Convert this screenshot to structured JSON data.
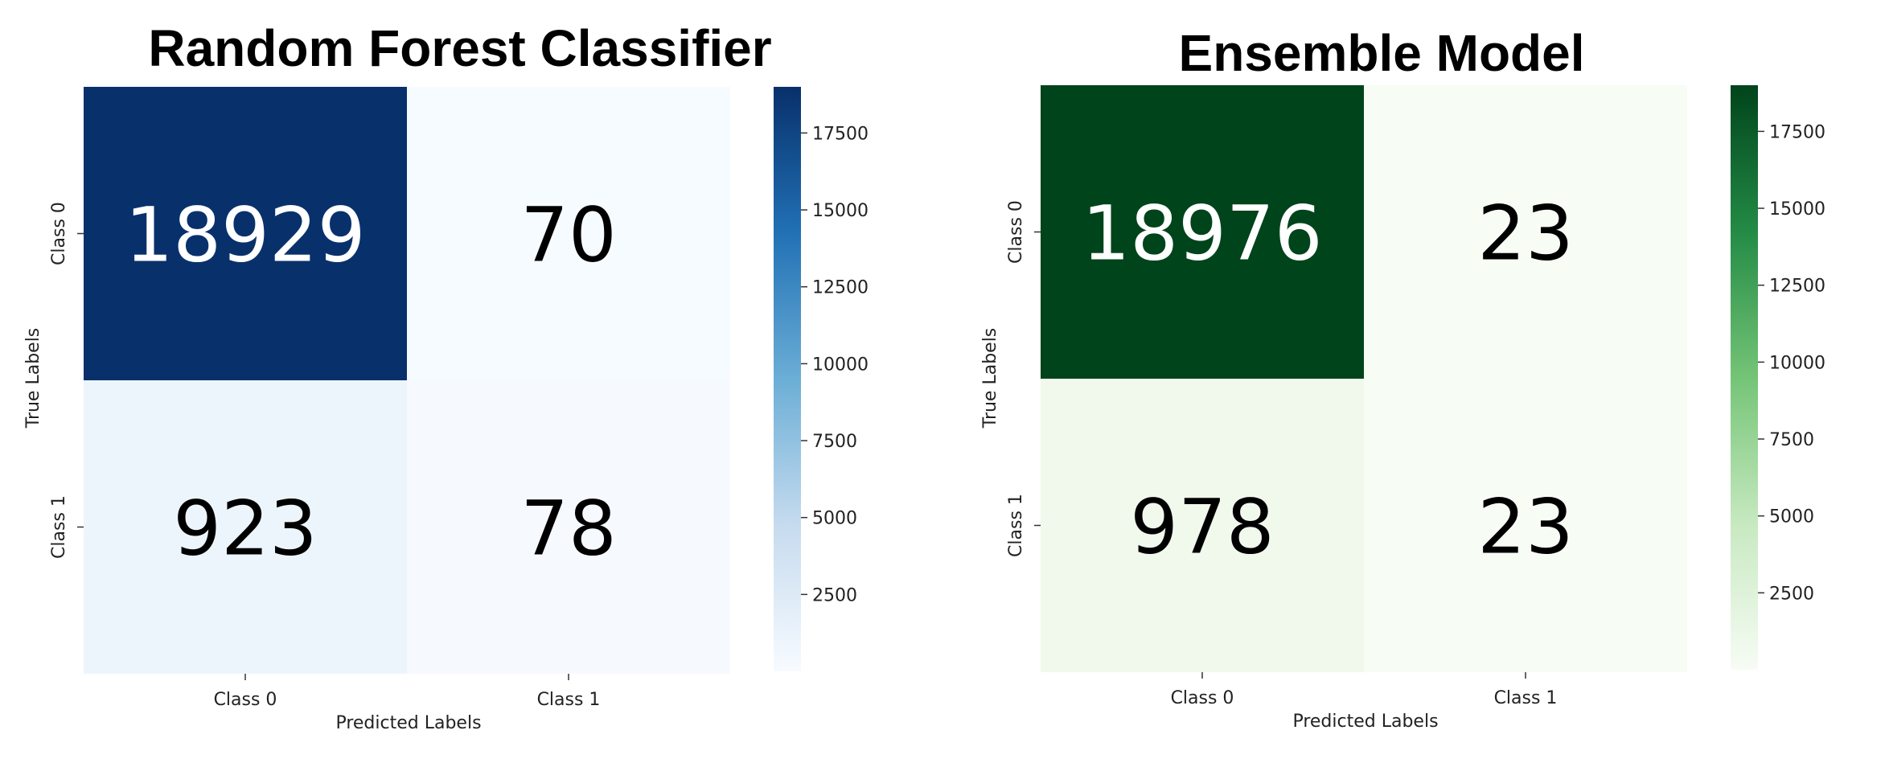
{
  "chart_data": [
    {
      "type": "heatmap",
      "title": "Random Forest Classifier",
      "xlabel": "Predicted Labels",
      "ylabel": "True Labels",
      "x_categories": [
        "Class 0",
        "Class 1"
      ],
      "y_categories": [
        "Class 0",
        "Class 1"
      ],
      "values": [
        [
          18929,
          70
        ],
        [
          923,
          78
        ]
      ],
      "value_labels": [
        [
          "18929",
          "70"
        ],
        [
          "923",
          "78"
        ]
      ],
      "colormap": "Blues",
      "colorbar": {
        "range": [
          0,
          19000
        ],
        "ticks": [
          2500,
          5000,
          7500,
          10000,
          12500,
          15000,
          17500
        ],
        "tick_labels": [
          "2500",
          "5000",
          "7500",
          "10000",
          "12500",
          "15000",
          "17500"
        ]
      }
    },
    {
      "type": "heatmap",
      "title": "Ensemble Model",
      "xlabel": "Predicted Labels",
      "ylabel": "True Labels",
      "x_categories": [
        "Class 0",
        "Class 1"
      ],
      "y_categories": [
        "Class 0",
        "Class 1"
      ],
      "values": [
        [
          18976,
          23
        ],
        [
          978,
          23
        ]
      ],
      "value_labels": [
        [
          "18976",
          "23"
        ],
        [
          "978",
          "23"
        ]
      ],
      "colormap": "Greens",
      "colorbar": {
        "range": [
          0,
          19000
        ],
        "ticks": [
          2500,
          5000,
          7500,
          10000,
          12500,
          15000,
          17500
        ],
        "tick_labels": [
          "2500",
          "5000",
          "7500",
          "10000",
          "12500",
          "15000",
          "17500"
        ]
      }
    }
  ]
}
